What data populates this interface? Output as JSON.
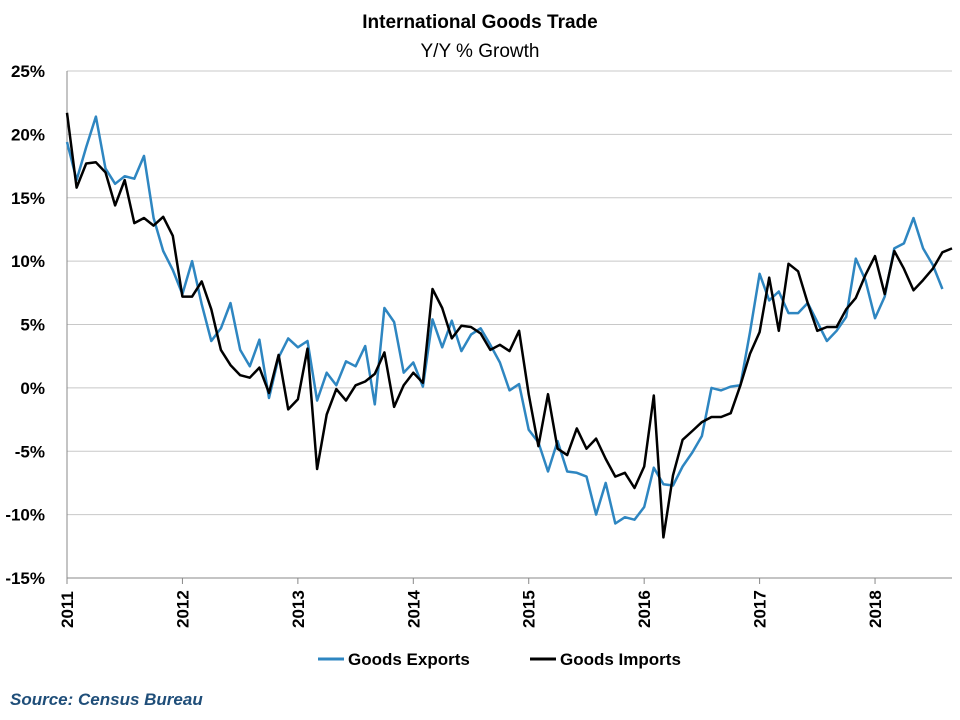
{
  "chart_data": {
    "type": "line",
    "title": "International Goods Trade",
    "subtitle": "Y/Y % Growth",
    "source": "Source:  Census  Bureau",
    "ylim": [
      -15,
      25
    ],
    "y_ticks": [
      25,
      20,
      15,
      10,
      5,
      0,
      -5,
      -10,
      -15
    ],
    "y_tick_labels": [
      "25%",
      "20%",
      "15%",
      "10%",
      "5%",
      "0%",
      "-5%",
      "-10%",
      "-15%"
    ],
    "xlim": [
      2011,
      2018.6667
    ],
    "x_ticks": [
      2011,
      2012,
      2013,
      2014,
      2015,
      2016,
      2017,
      2018
    ],
    "x_tick_labels": [
      "2011",
      "2012",
      "2013",
      "2014",
      "2015",
      "2016",
      "2017",
      "2018"
    ],
    "grid": "horizontal",
    "legend_position": "bottom",
    "series": [
      {
        "name": "Goods Exports",
        "color": "#2E86C1",
        "x_start": 2011,
        "x_step": 0.083333,
        "values": [
          19.4,
          16.4,
          19.0,
          21.4,
          17.3,
          16.1,
          16.7,
          16.5,
          18.3,
          13.4,
          10.8,
          9.3,
          7.4,
          10.0,
          6.6,
          3.7,
          4.7,
          6.7,
          3.0,
          1.7,
          3.8,
          -0.8,
          2.4,
          3.9,
          3.2,
          3.7,
          -1.0,
          1.2,
          0.2,
          2.1,
          1.7,
          3.3,
          -1.3,
          6.3,
          5.2,
          1.2,
          2.0,
          0.1,
          5.4,
          3.2,
          5.3,
          2.9,
          4.2,
          4.7,
          3.4,
          2.0,
          -0.2,
          0.3,
          -3.3,
          -4.3,
          -6.6,
          -4.2,
          -6.6,
          -6.7,
          -7.0,
          -10.0,
          -7.5,
          -10.7,
          -10.2,
          -10.4,
          -9.4,
          -6.3,
          -7.6,
          -7.7,
          -6.2,
          -5.1,
          -3.8,
          0.0,
          -0.2,
          0.1,
          0.2,
          4.4,
          9.0,
          6.9,
          7.6,
          5.9,
          5.9,
          6.7,
          5.2,
          3.7,
          4.5,
          5.6,
          10.2,
          8.5,
          5.5,
          7.2,
          11.0,
          11.4,
          13.4,
          11.0,
          9.7,
          7.8
        ]
      },
      {
        "name": "Goods Imports",
        "color": "#000000",
        "x_start": 2011,
        "x_step": 0.083333,
        "values": [
          21.7,
          15.8,
          17.7,
          17.8,
          17.0,
          14.4,
          16.4,
          13.0,
          13.4,
          12.8,
          13.5,
          12.0,
          7.2,
          7.2,
          8.4,
          6.2,
          3.0,
          1.8,
          1.0,
          0.8,
          1.6,
          -0.4,
          2.6,
          -1.7,
          -0.9,
          3.1,
          -6.4,
          -2.1,
          -0.1,
          -1.0,
          0.2,
          0.5,
          1.1,
          2.8,
          -1.5,
          0.2,
          1.2,
          0.4,
          7.8,
          6.3,
          3.9,
          4.9,
          4.8,
          4.3,
          3.0,
          3.4,
          2.9,
          4.5,
          -0.5,
          -4.6,
          -0.5,
          -4.8,
          -5.3,
          -3.2,
          -4.8,
          -4.0,
          -5.6,
          -7.0,
          -6.7,
          -7.9,
          -6.2,
          -0.6,
          -11.8,
          -6.9,
          -4.1,
          -3.4,
          -2.7,
          -2.3,
          -2.3,
          -2.0,
          0.2,
          2.7,
          4.4,
          8.7,
          4.5,
          9.8,
          9.2,
          6.7,
          4.5,
          4.8,
          4.8,
          6.2,
          7.1,
          8.9,
          10.4,
          7.4,
          10.8,
          9.4,
          7.7,
          8.5,
          9.4,
          10.7,
          11.0
        ]
      }
    ]
  }
}
